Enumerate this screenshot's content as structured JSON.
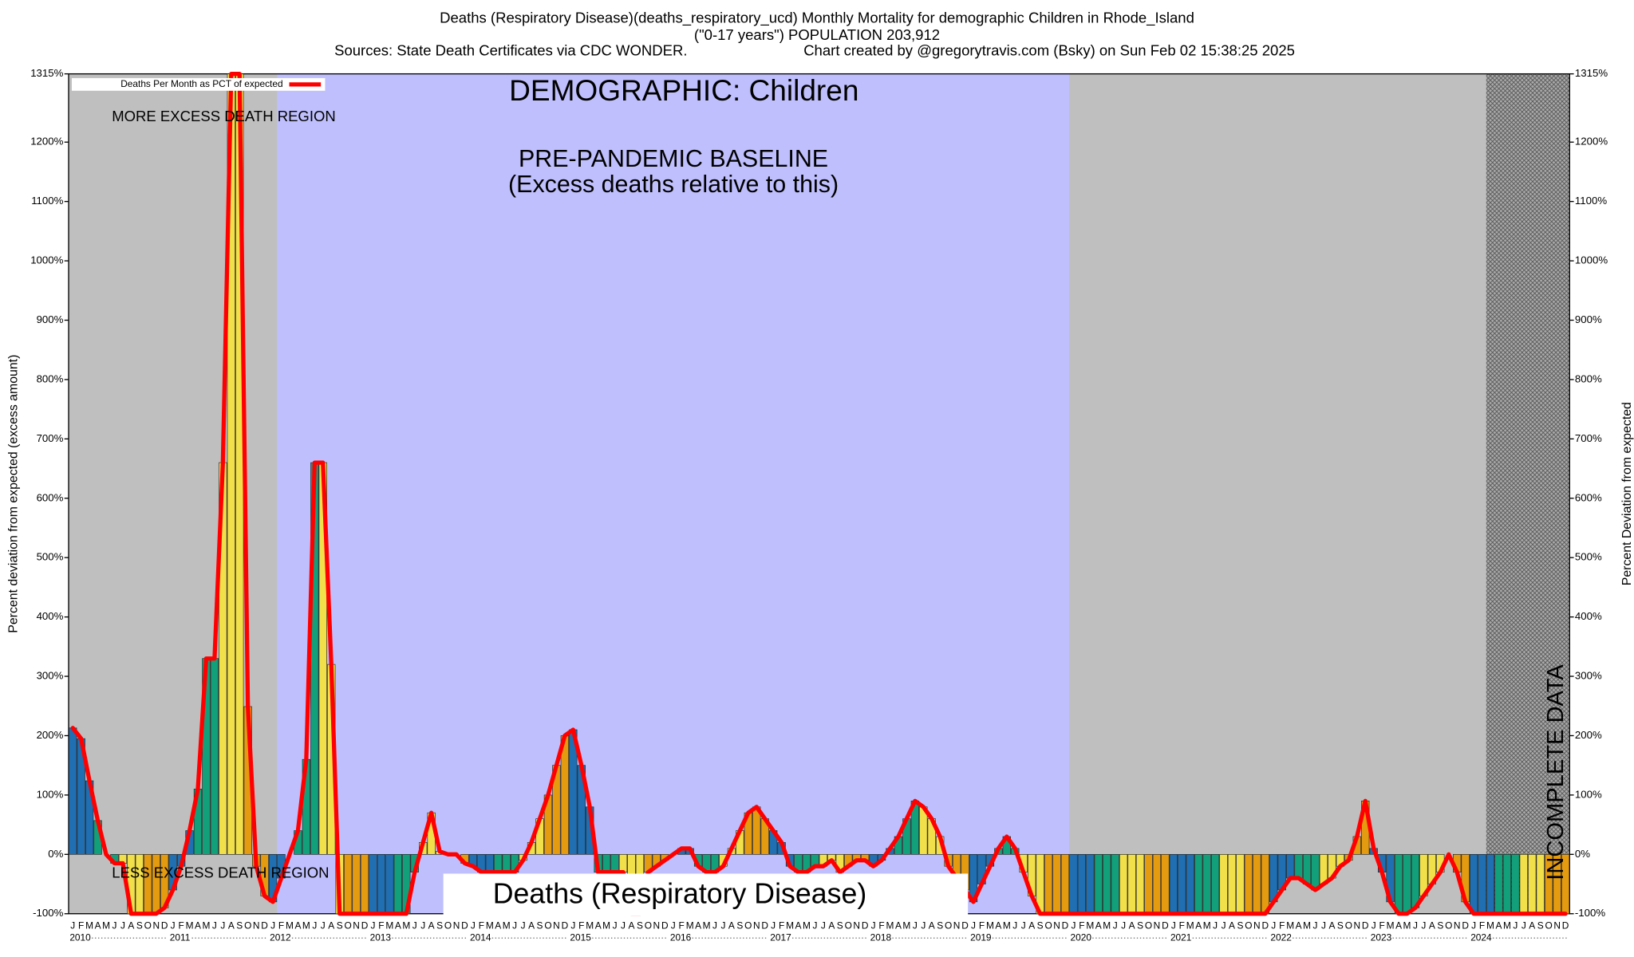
{
  "chart_data": {
    "type": "bar",
    "title": "Deaths (Respiratory Disease)(deaths_respiratory_ucd) Monthly Mortality for demographic Children in Rhode_Island",
    "subtitle": "(\"0-17 years\") POPULATION 203,912",
    "sources": "Sources: State Death Certificates via CDC WONDER.",
    "credit": "Chart created by @gregorytravis.com (Bsky) on Sun Feb 02 15:38:25 2025",
    "y_label": "Percent deviation from expected (excess amount)",
    "y2_label": "Percent Deviation from expected",
    "annotations": [
      "DEMOGRAPHIC: Children",
      "PRE-PANDEMIC BASELINE",
      "(Excess deaths relative to this)",
      "MORE EXCESS DEATH REGION",
      "LESS EXCESS DEATH REGION",
      "Deaths (Respiratory Disease)",
      "INCOMPLETE DATA"
    ],
    "months": [
      "J",
      "F",
      "M",
      "A",
      "M",
      "J",
      "J",
      "A",
      "S",
      "O",
      "N",
      "D"
    ],
    "years": [
      "2010",
      "2011",
      "2012",
      "2013",
      "2014",
      "2015",
      "2016",
      "2017",
      "2018",
      "2019",
      "2020",
      "2021",
      "2022",
      "2023",
      "2024"
    ],
    "season_colors": [
      "#1f6fb2",
      "#12a07a",
      "#f2e04a",
      "#e49b0f"
    ],
    "series": [
      {
        "name": "Deaths Per Month as PCT of expected",
        "color": "#ff0000",
        "values": [
          213,
          195,
          124,
          57,
          0,
          -15,
          -15,
          -100,
          -100,
          -100,
          -100,
          -90,
          -60,
          -20,
          40,
          110,
          330,
          330,
          660,
          1315,
          1315,
          249,
          -20,
          -70,
          -80,
          -40,
          0,
          40,
          160,
          660,
          660,
          320,
          -100,
          -100,
          -100,
          -100,
          -100,
          -100,
          -100,
          -100,
          -100,
          -30,
          20,
          70,
          5,
          0,
          0,
          -15,
          -20,
          -30,
          -30,
          -30,
          -30,
          -30,
          -10,
          20,
          60,
          100,
          150,
          200,
          210,
          150,
          80,
          -30,
          -30,
          -30,
          -30,
          -100,
          -100,
          -30,
          -20,
          -10,
          0,
          10,
          10,
          -20,
          -30,
          -30,
          -20,
          10,
          40,
          70,
          80,
          60,
          40,
          20,
          -20,
          -30,
          -30,
          -20,
          -20,
          -10,
          -30,
          -20,
          -10,
          -10,
          -20,
          -10,
          10,
          30,
          60,
          90,
          80,
          60,
          30,
          -20,
          -40,
          -60,
          -80,
          -50,
          -20,
          10,
          30,
          10,
          -30,
          -70,
          -100,
          -100,
          -100,
          -100,
          -100,
          -100,
          -100,
          -100,
          -100,
          -100,
          -100,
          -100,
          -100,
          -100,
          -100,
          -100,
          -100,
          -100,
          -100,
          -100,
          -100,
          -100,
          -100,
          -100,
          -100,
          -100,
          -100,
          -100,
          -80,
          -60,
          -40,
          -40,
          -50,
          -60,
          -50,
          -40,
          -20,
          -10,
          30,
          90,
          10,
          -30,
          -80,
          -100,
          -100,
          -90,
          -70,
          -50,
          -30,
          0,
          -30,
          -80,
          -100,
          -100,
          -100,
          -100,
          -100,
          -100,
          -100,
          -100,
          -100,
          -100,
          -100,
          -100
        ]
      }
    ],
    "ylim": [
      -100,
      1315
    ],
    "yticks": [
      {
        "value": -100,
        "label": "-100%"
      },
      {
        "value": 0,
        "label": "0%"
      },
      {
        "value": 100,
        "label": "100%"
      },
      {
        "value": 200,
        "label": "200%"
      },
      {
        "value": 300,
        "label": "300%"
      },
      {
        "value": 400,
        "label": "400%"
      },
      {
        "value": 500,
        "label": "500%"
      },
      {
        "value": 600,
        "label": "600%"
      },
      {
        "value": 700,
        "label": "700%"
      },
      {
        "value": 800,
        "label": "800%"
      },
      {
        "value": 900,
        "label": "900%"
      },
      {
        "value": 1000,
        "label": "1000%"
      },
      {
        "value": 1100,
        "label": "1100%"
      },
      {
        "value": 1200,
        "label": "1200%"
      },
      {
        "value": 1315,
        "label": "1315%"
      }
    ]
  }
}
